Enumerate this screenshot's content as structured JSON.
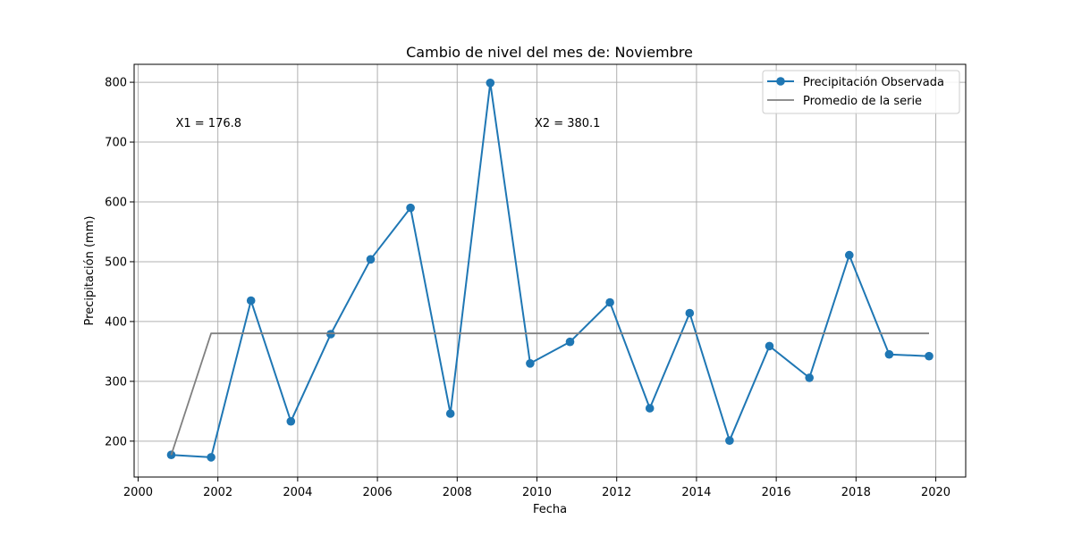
{
  "chart_data": {
    "type": "line",
    "title": "Cambio de nivel del mes de: Noviembre",
    "xlabel": "Fecha",
    "ylabel": "Precipitación (mm)",
    "xlim": [
      1999.9,
      2020.75
    ],
    "ylim": [
      140,
      830
    ],
    "x_ticks": [
      2000,
      2002,
      2004,
      2006,
      2008,
      2010,
      2012,
      2014,
      2016,
      2018,
      2020
    ],
    "y_ticks": [
      200,
      300,
      400,
      500,
      600,
      700,
      800
    ],
    "grid": true,
    "legend_position": "top-right",
    "series": [
      {
        "name": "Precipitación Observada",
        "color": "#1f77b4",
        "marker": "circle",
        "x": [
          2000.83,
          2001.83,
          2002.83,
          2003.83,
          2004.83,
          2005.83,
          2006.83,
          2007.83,
          2008.83,
          2009.83,
          2010.83,
          2011.83,
          2012.83,
          2013.83,
          2014.83,
          2015.83,
          2016.83,
          2017.83,
          2018.83,
          2019.83
        ],
        "y": [
          177,
          173,
          435,
          233,
          379,
          504,
          590,
          246,
          799,
          330,
          366,
          432,
          255,
          414,
          201,
          359,
          306,
          511,
          345,
          342
        ]
      },
      {
        "name": "Promedio de la serie",
        "color": "#808080",
        "marker": "none",
        "x": [
          2000.83,
          2001.83,
          2019.83
        ],
        "y": [
          176.8,
          380.1,
          380.1
        ]
      }
    ],
    "annotations": [
      {
        "text": "X1 = 176.8",
        "x": 2000.83,
        "y": 715
      },
      {
        "text": "X2 = 380.1",
        "x": 2009.83,
        "y": 715
      }
    ]
  }
}
